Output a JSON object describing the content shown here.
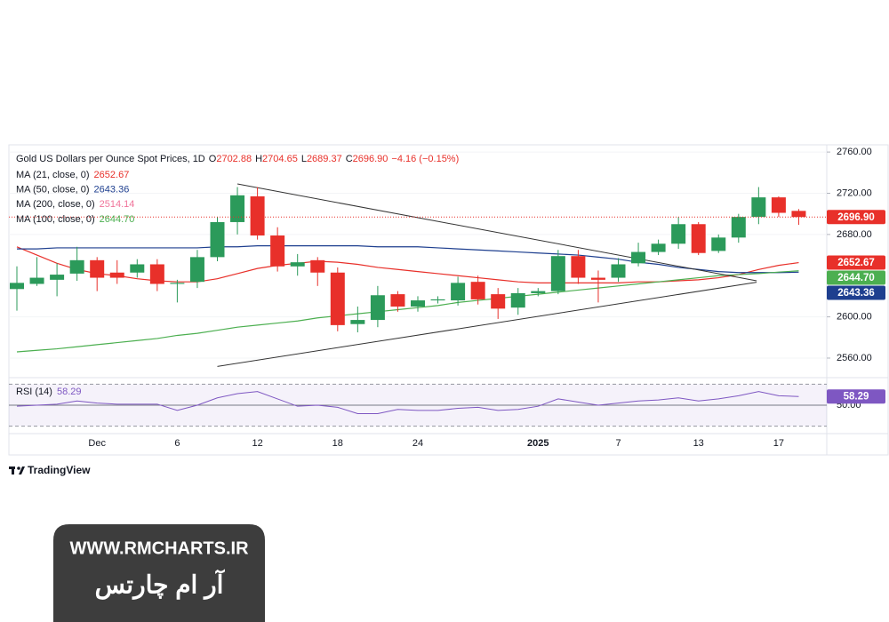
{
  "chart_data": {
    "type": "candlestick",
    "title": "Gold US Dollars per Ounce Spot Prices, 1D",
    "stats": [
      {
        "key": "O",
        "value": "2702.88"
      },
      {
        "key": "H",
        "value": "2704.65"
      },
      {
        "key": "L",
        "value": "2689.37"
      },
      {
        "key": "C",
        "value": "2696.90"
      }
    ],
    "change": "−4.16 (−0.15%)",
    "last_price_label": "2696.90",
    "up_color": "#2b9a5a",
    "down_color": "#e8302a",
    "categories": [
      null,
      null,
      null,
      null,
      "Dec",
      null,
      null,
      null,
      "6",
      null,
      null,
      null,
      "12",
      null,
      null,
      null,
      "18",
      null,
      null,
      null,
      "24",
      null,
      null,
      null,
      null,
      null,
      "2025",
      null,
      null,
      null,
      "7",
      null,
      null,
      null,
      "13",
      null,
      null,
      null,
      "17",
      null
    ],
    "open": [
      2627,
      2632,
      2636,
      2642,
      2655,
      2643,
      2643,
      2651,
      2632,
      2634,
      2658,
      2692,
      2717,
      2679,
      2649,
      2655,
      2643,
      2593,
      2597,
      2622,
      2610,
      2616,
      2616,
      2634,
      2622,
      2609,
      2623,
      2625,
      2659,
      2638,
      2638,
      2652,
      2663,
      2671,
      2690,
      2664,
      2677,
      2697,
      2716,
      2702.88
    ],
    "high": [
      2649,
      2658,
      2652,
      2668,
      2658,
      2655,
      2656,
      2656,
      2636,
      2665,
      2697,
      2726,
      2726,
      2687,
      2661,
      2658,
      2648,
      2610,
      2630,
      2625,
      2620,
      2620,
      2639,
      2640,
      2628,
      2628,
      2628,
      2665,
      2665,
      2645,
      2657,
      2672,
      2675,
      2697,
      2692,
      2680,
      2700,
      2726,
      2717,
      2704.65
    ],
    "low": [
      2606,
      2630,
      2620,
      2635,
      2625,
      2632,
      2638,
      2625,
      2614,
      2628,
      2654,
      2680,
      2675,
      2644,
      2640,
      2630,
      2586,
      2585,
      2590,
      2605,
      2605,
      2613,
      2611,
      2612,
      2598,
      2602,
      2620,
      2622,
      2632,
      2614,
      2634,
      2649,
      2660,
      2666,
      2660,
      2662,
      2672,
      2690,
      2697,
      2689.37
    ],
    "close": [
      2633,
      2638,
      2641,
      2655,
      2638,
      2638,
      2651,
      2632,
      2633,
      2658,
      2692,
      2718,
      2679,
      2649,
      2653,
      2643,
      2592,
      2597,
      2621,
      2610,
      2616,
      2617,
      2633,
      2617,
      2608,
      2623,
      2625,
      2659,
      2638,
      2636,
      2651,
      2663,
      2671,
      2690,
      2662,
      2677,
      2697,
      2716,
      2701,
      2696.9
    ],
    "ylim": [
      2541,
      2767
    ],
    "yticks": [
      {
        "value": 2560,
        "label": "2560.00"
      },
      {
        "value": 2600,
        "label": "2600.00"
      },
      {
        "value": 2680,
        "label": "2680.00"
      },
      {
        "value": 2720,
        "label": "2720.00"
      },
      {
        "value": 2760,
        "label": "2760.00"
      }
    ],
    "grid": true,
    "series": [
      {
        "name": "MA (21, close, 0)",
        "color": "#e8302a",
        "last_label": "2652.67",
        "values": [
          2668,
          2660,
          2652,
          2646,
          2642,
          2640,
          2637,
          2635,
          2634,
          2634,
          2637,
          2642,
          2647,
          2650,
          2652,
          2654,
          2653,
          2651,
          2648,
          2646,
          2644,
          2642,
          2640,
          2638,
          2636,
          2634,
          2633,
          2633,
          2633,
          2633,
          2633,
          2634,
          2634,
          2635,
          2636,
          2638,
          2641,
          2646,
          2650,
          2652.67
        ]
      },
      {
        "name": "MA (50, close, 0)",
        "color": "#1e3f8f",
        "last_label": "2643.36",
        "values": [
          2666,
          2666,
          2667,
          2667,
          2667,
          2667,
          2667,
          2667,
          2667,
          2667,
          2668,
          2668,
          2669,
          2669,
          2669,
          2669,
          2669,
          2669,
          2668,
          2668,
          2668,
          2667,
          2666,
          2665,
          2664,
          2663,
          2662,
          2661,
          2660,
          2658,
          2656,
          2653,
          2651,
          2648,
          2646,
          2644,
          2643,
          2643,
          2643,
          2643.36
        ]
      },
      {
        "name": "MA (200, close, 0)",
        "color": "#f0749a",
        "last_label": "2514.14"
      },
      {
        "name": "MA (100, close, 0)",
        "color": "#4caf50",
        "last_label": "2644.70",
        "values": [
          2566,
          2567.5,
          2569,
          2571,
          2573,
          2575,
          2577,
          2579,
          2582,
          2584,
          2587,
          2590,
          2592,
          2594,
          2596,
          2599,
          2601,
          2603,
          2605,
          2607,
          2609,
          2611,
          2614,
          2616,
          2618,
          2620,
          2622,
          2624,
          2626,
          2628,
          2630,
          2632,
          2634,
          2636,
          2638,
          2640,
          2641,
          2642,
          2643.5,
          2644.7
        ]
      }
    ],
    "trendlines": [
      {
        "x": [
          10.0,
          36.9
        ],
        "y": [
          2551.9,
          2633.6
        ],
        "color": "#333333"
      },
      {
        "x": [
          11.0,
          36.9
        ],
        "y": [
          2729,
          2635
        ],
        "color": "#333333"
      }
    ],
    "rsi": {
      "name": "RSI (14)",
      "color": "#7e57c2",
      "last_label": "58.29",
      "ylim": [
        28,
        72
      ],
      "band": [
        30,
        70
      ],
      "yticks": [
        {
          "value": 50,
          "label": "50.00"
        }
      ],
      "values": [
        49,
        50,
        51,
        54,
        52,
        51,
        51,
        51,
        45,
        50,
        57,
        61,
        63,
        56,
        49,
        50,
        48,
        42,
        42,
        46,
        45,
        45,
        47,
        48,
        45,
        46,
        49,
        56,
        53,
        50,
        52,
        54,
        55,
        57,
        54,
        56,
        59,
        63,
        59,
        58.29
      ]
    }
  },
  "footer": {
    "brand": "TradingView",
    "watermark_url": "WWW.RMCHARTS.IR",
    "watermark_name": "آر ام چارتس"
  }
}
